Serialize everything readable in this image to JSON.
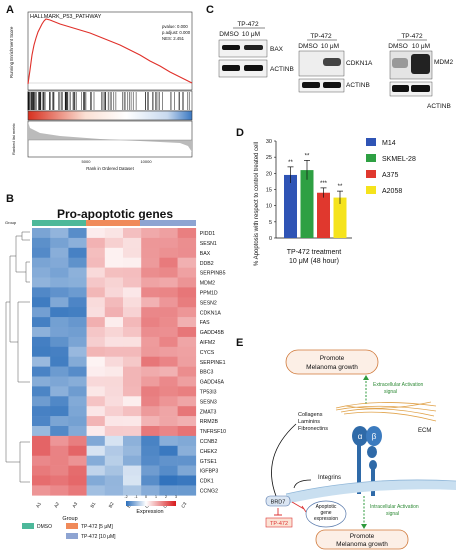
{
  "panels": {
    "A": {
      "letter": "A",
      "gsea_title": "HALLMARK_P53_PATHWAY",
      "stats": [
        "pvalue: 0.000",
        "p.adjust: 0.000",
        "NES: 2.451"
      ],
      "ylabel_top": "Running Enrichment Score",
      "ylabel_bottom": "Ranked list metric",
      "xlabel": "Rank in Ordered Dataset",
      "xticks": [
        "5000",
        "10000"
      ],
      "yticks_top": [
        "0.0",
        "0.2",
        "0.4",
        "0.6"
      ]
    },
    "B": {
      "letter": "B",
      "title": "Pro-apoptotic genes",
      "group_label": "Group",
      "genes": [
        "PIDD1",
        "SESN1",
        "BAX",
        "DDB2",
        "SERPINB5",
        "MDM2",
        "PPM1D",
        "SESN2",
        "CDKN1A",
        "FAS",
        "GADD45B",
        "AIFM2",
        "CYCS",
        "SERPINE1",
        "BBC3",
        "GADD45A",
        "TP53I3",
        "SESN3",
        "ZMAT3",
        "RRM2B",
        "TNFRSF10",
        "CCNB2",
        "CHEK2",
        "GTSE1",
        "IGFBP3",
        "CDK1",
        "CCNG2"
      ],
      "samples": [
        "A1",
        "A2",
        "A3",
        "B1",
        "B2",
        "B3",
        "C1",
        "C2",
        "C3"
      ],
      "legend_group_title": "Group",
      "legend_groups": [
        {
          "label": "DMSO",
          "color": "#4db89a"
        },
        {
          "label": "TP-472 [5 μM]",
          "color": "#f08a5a"
        },
        {
          "label": "TP-472 [10 μM]",
          "color": "#8ea4d2"
        }
      ],
      "legend_expr_title": "Expression",
      "legend_expr_ticks": [
        "-2",
        "-1",
        "0",
        "1",
        "2",
        "3"
      ]
    },
    "C": {
      "letter": "C",
      "blots": [
        {
          "header": "TP-472",
          "lanes": [
            "DMSO",
            "10 μM"
          ],
          "targets": [
            "BAX",
            "ACTINB"
          ]
        },
        {
          "header": "TP-472",
          "lanes": [
            "DMSO",
            "10 μM"
          ],
          "targets": [
            "CDKN1A",
            "ACTINB"
          ]
        },
        {
          "header": "TP-472",
          "lanes": [
            "DMSO",
            "10 μM"
          ],
          "targets": [
            "MDM2",
            "ACTINB"
          ]
        }
      ]
    },
    "D": {
      "letter": "D",
      "ylabel": "% Apoptosis with respect to control treated cell",
      "xlabel_lines": [
        "TP-472 treatment",
        "10 μM (48 hour)"
      ]
    },
    "E": {
      "letter": "E",
      "promote_top": [
        "Promote",
        "Melanoma growth"
      ],
      "extracellular": [
        "Extracellular Activation",
        "signal"
      ],
      "matrix": [
        "Collagens",
        "Laminins",
        "Fibronectins"
      ],
      "ecm": "ECM",
      "alpha": "α",
      "beta": "β",
      "integrins": "Integrins",
      "brd7": "BRD7",
      "tp472": "TP-472",
      "apoptotic": [
        "Apoptotic",
        "gene",
        "expression"
      ],
      "intracellular": [
        "Intracellular Activation",
        "signal"
      ],
      "promote_bottom": [
        "Promote",
        "Melanoma growth"
      ]
    }
  },
  "chart_data": {
    "type": "bar",
    "categories": [
      "M14",
      "SKMEL-28",
      "A375",
      "A2058"
    ],
    "values": [
      19.5,
      21,
      14,
      12.5
    ],
    "errors": [
      2.5,
      3,
      1.5,
      2
    ],
    "significance": [
      "**",
      "**",
      "***",
      "**"
    ],
    "colors": [
      "#2f54b5",
      "#2ea043",
      "#e0382e",
      "#f5e31c"
    ],
    "yticks": [
      "0",
      "5",
      "10",
      "15",
      "20",
      "25",
      "30"
    ],
    "ylim": [
      0,
      30
    ],
    "ylabel": "% Apoptosis with respect to control treated cell",
    "legend": [
      "M14",
      "SKMEL-28",
      "A375",
      "A2058"
    ],
    "legend_position": "right"
  }
}
